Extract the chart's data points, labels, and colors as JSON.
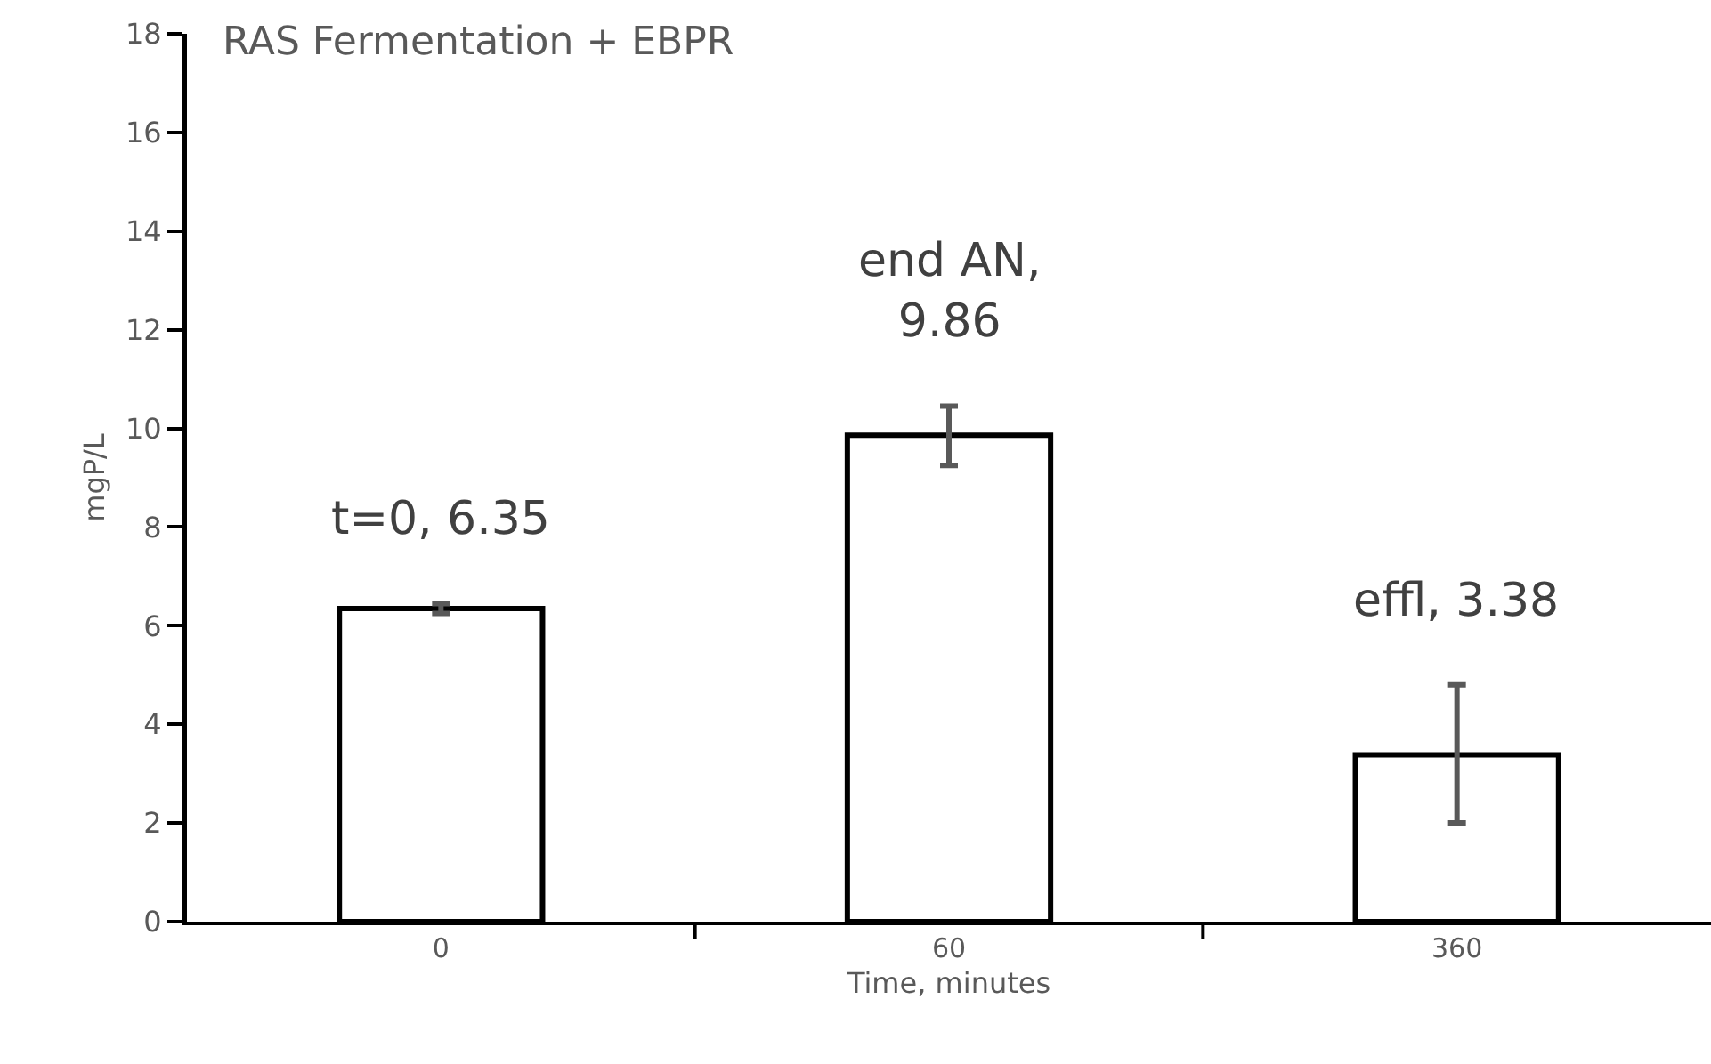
{
  "chart_data": {
    "type": "bar",
    "title": "RAS Fermentation + EBPR",
    "xlabel": "Time, minutes",
    "ylabel": "mgP/L",
    "categories": [
      "0",
      "60",
      "360"
    ],
    "series": [
      {
        "color": "#ffffff",
        "values": [
          6.35,
          9.86,
          3.38
        ],
        "value_labels": [
          "t=0, 6.35",
          "end AN,\n9.86",
          "effl, 3.38"
        ],
        "errors": [
          0.1,
          [
            9.25,
            10.45
          ],
          [
            2.0,
            4.8
          ]
        ]
      }
    ],
    "ylim": [
      0,
      18
    ],
    "yticks": [
      0,
      2,
      4,
      6,
      8,
      10,
      12,
      14,
      16,
      18
    ],
    "grid": false
  }
}
